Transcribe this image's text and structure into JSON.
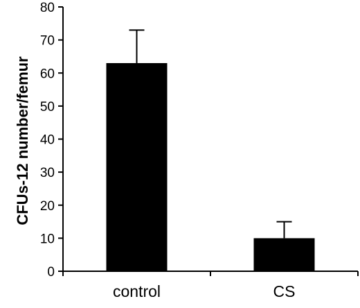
{
  "chart_data": {
    "type": "bar",
    "title": "",
    "xlabel": "",
    "ylabel": "CFUs-12 number/femur",
    "categories": [
      "control",
      "CS"
    ],
    "values": [
      63,
      10
    ],
    "error_upper": [
      10,
      5
    ],
    "ylim": [
      0,
      80
    ],
    "yticks": [
      "0",
      "10",
      "20",
      "30",
      "40",
      "50",
      "60",
      "70",
      "80"
    ],
    "grid": false,
    "bar_color": "#000000"
  }
}
